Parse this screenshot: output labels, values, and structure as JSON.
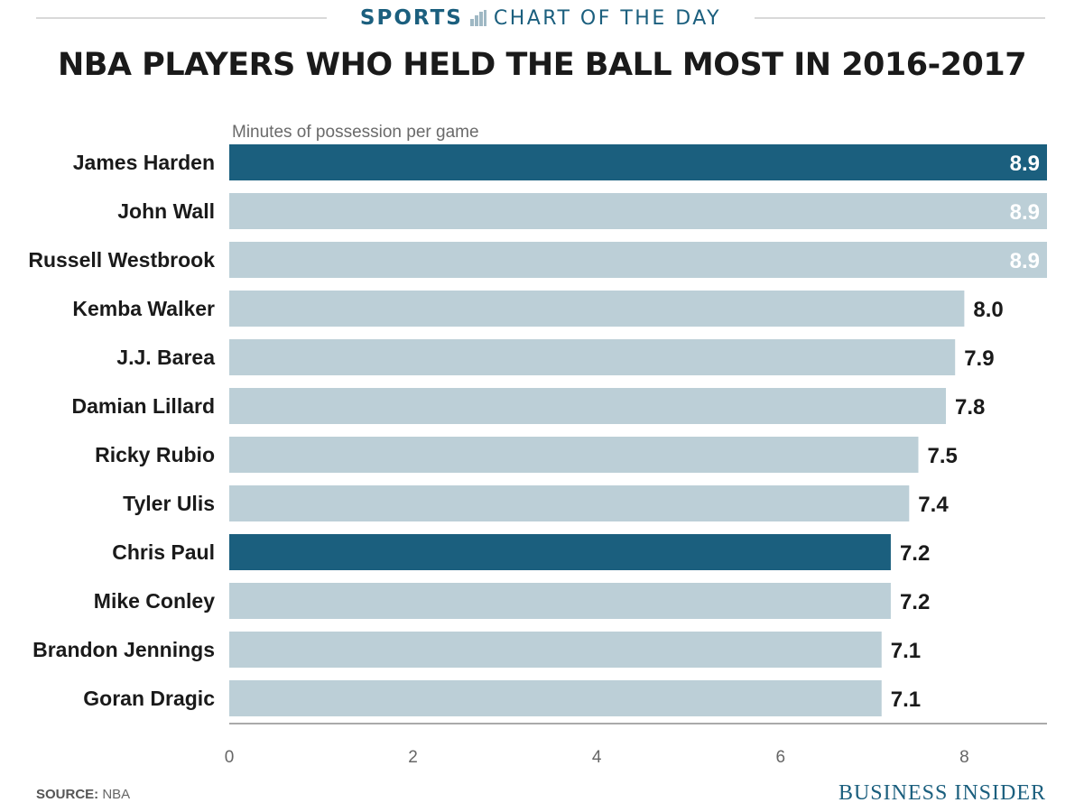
{
  "header": {
    "kicker": "SPORTS",
    "series_label": "CHART OF THE DAY",
    "title": "NBA PLAYERS WHO HELD THE BALL MOST IN 2016-2017"
  },
  "footer": {
    "source_label": "SOURCE:",
    "source_value": "NBA",
    "brand": "BUSINESS INSIDER"
  },
  "colors": {
    "highlight": "#1b5f7e",
    "bar": "#bccfd7",
    "text": "#1a1a1a"
  },
  "chart_data": {
    "type": "bar",
    "orientation": "horizontal",
    "subtitle": "Minutes of possession per game",
    "categories": [
      "James Harden",
      "John Wall",
      "Russell Westbrook",
      "Kemba Walker",
      "J.J. Barea",
      "Damian Lillard",
      "Ricky Rubio",
      "Tyler Ulis",
      "Chris Paul",
      "Mike Conley",
      "Brandon Jennings",
      "Goran Dragic"
    ],
    "values": [
      8.9,
      8.9,
      8.9,
      8.0,
      7.9,
      7.8,
      7.5,
      7.4,
      7.2,
      7.2,
      7.1,
      7.1
    ],
    "value_labels": [
      "8.9",
      "8.9",
      "8.9",
      "8.0",
      "7.9",
      "7.8",
      "7.5",
      "7.4",
      "7.2",
      "7.2",
      "7.1",
      "7.1"
    ],
    "highlighted": [
      "James Harden",
      "Chris Paul"
    ],
    "xlim": [
      0,
      8.9
    ],
    "xticks": [
      0,
      2,
      4,
      6,
      8
    ],
    "xtick_labels": [
      "0",
      "2",
      "4",
      "6",
      "8"
    ],
    "grid": false,
    "legend": "none"
  }
}
